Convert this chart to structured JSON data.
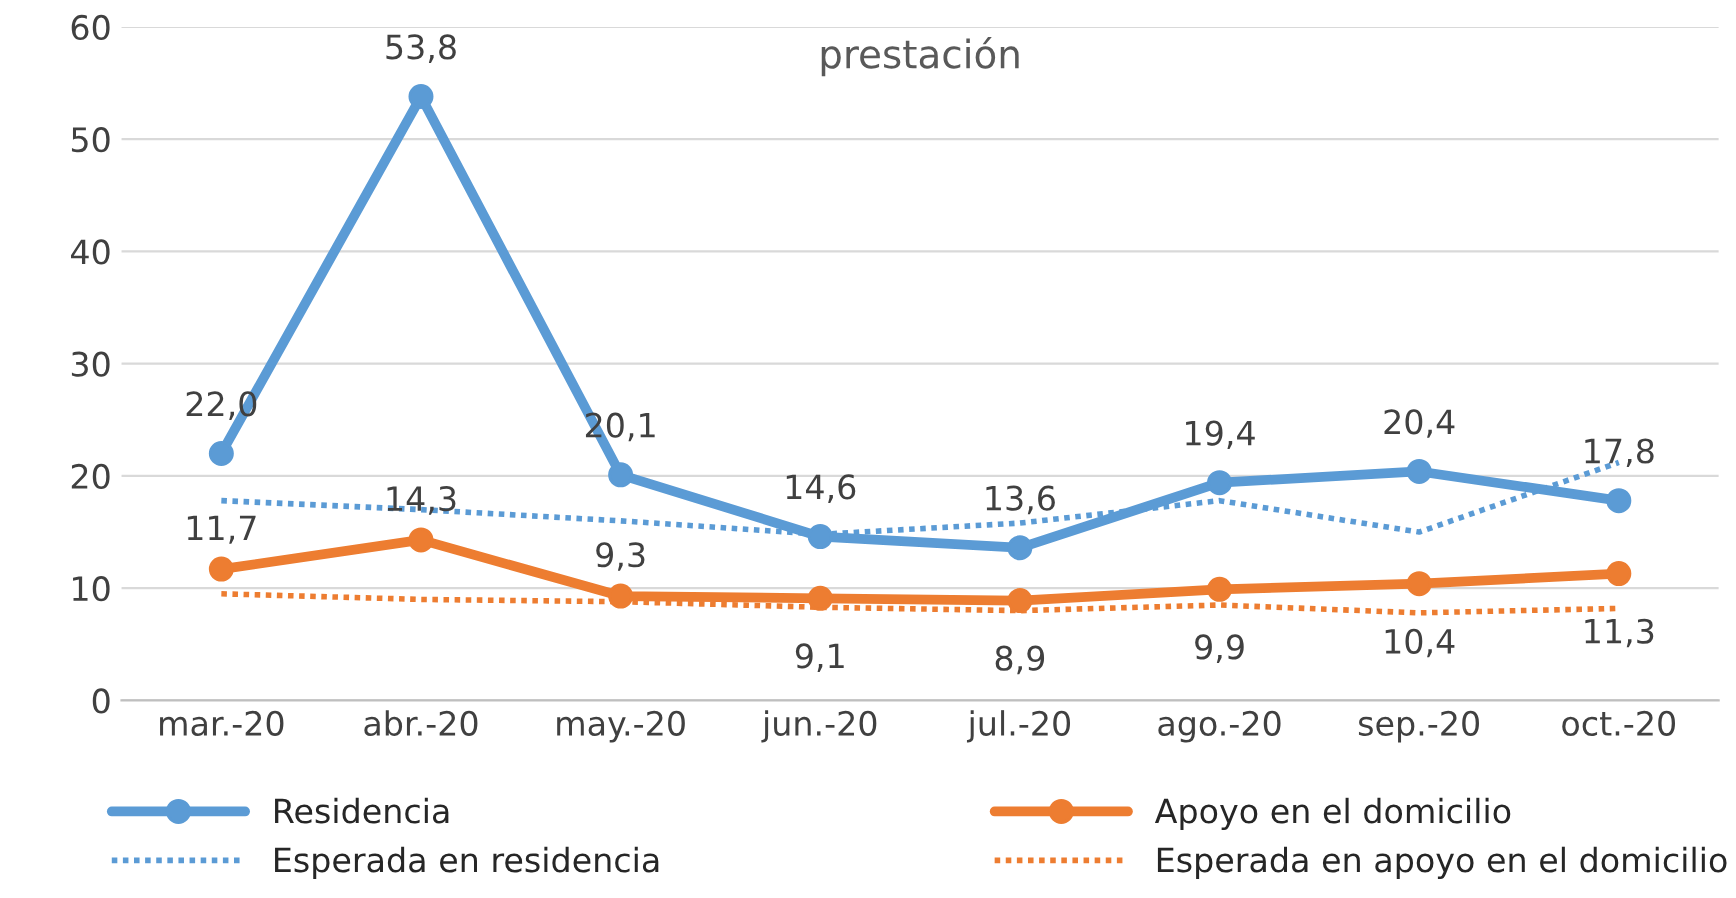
{
  "chart_data": {
    "type": "line",
    "title": "prestación",
    "categories": [
      "mar.-20",
      "abr.-20",
      "may.-20",
      "jun.-20",
      "jul.-20",
      "ago.-20",
      "sep.-20",
      "oct.-20"
    ],
    "series": [
      {
        "name": "Residencia",
        "color": "#5b9bd5",
        "values": [
          22.0,
          53.8,
          20.1,
          14.6,
          13.6,
          19.4,
          20.4,
          17.8
        ],
        "value_labels": [
          "22,0",
          "53,8",
          "20,1",
          "14,6",
          "13,6",
          "19,4",
          "20,4",
          "17,8"
        ],
        "marker": "circle",
        "line_style": "solid"
      },
      {
        "name": "Apoyo en el domicilio",
        "color": "#ed7d31",
        "values": [
          11.7,
          14.3,
          9.3,
          9.1,
          8.9,
          9.9,
          10.4,
          11.3
        ],
        "value_labels": [
          "11,7",
          "14,3",
          "9,3",
          "9,1",
          "8,9",
          "9,9",
          "10,4",
          "11,3"
        ],
        "marker": "circle",
        "line_style": "solid"
      },
      {
        "name": "Esperada en residencia",
        "color": "#5b9bd5",
        "values": [
          17.8,
          17.0,
          16.0,
          14.8,
          15.8,
          17.8,
          15.0,
          21.2
        ],
        "marker": "none",
        "line_style": "dotted"
      },
      {
        "name": "Esperada en apoyo en el domicilio",
        "color": "#ed7d31",
        "values": [
          9.5,
          9.0,
          8.8,
          8.3,
          8.0,
          8.5,
          7.8,
          8.2
        ],
        "marker": "none",
        "line_style": "dotted"
      }
    ],
    "ylim": [
      0,
      60
    ],
    "yticks": [
      0,
      10,
      20,
      30,
      40,
      50,
      60
    ],
    "grid": "y",
    "legend": "bottom"
  }
}
